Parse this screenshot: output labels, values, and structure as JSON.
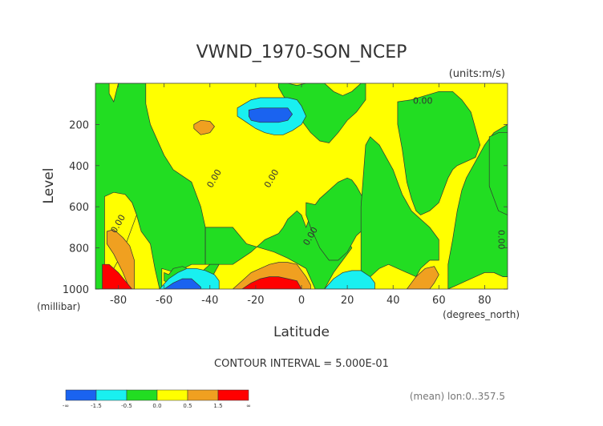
{
  "chart_data": {
    "type": "contour",
    "title": "VWND_1970-SON_NCEP",
    "units_label": "(units:m/s)",
    "xlabel": "Latitude",
    "xunits_label": "(degrees_north)",
    "ylabel": "Level",
    "yunits_label": "(millibar)",
    "xlim": [
      -90,
      90
    ],
    "ylim": [
      1000,
      0
    ],
    "x_ticks": [
      "-80",
      "-60",
      "-40",
      "-20",
      "0",
      "20",
      "40",
      "60",
      "80"
    ],
    "y_ticks": [
      "200",
      "400",
      "600",
      "800",
      "1000"
    ],
    "contour_interval_label": "CONTOUR INTERVAL = 5.000E-01",
    "mean_label": "(mean) lon:0..357.5",
    "contour_labels": [
      {
        "text": "0.00",
        "lat": 53,
        "level": 100
      },
      {
        "text": "0.00",
        "lat": -37,
        "level": 470
      },
      {
        "text": "0.00",
        "lat": -12,
        "level": 470
      },
      {
        "text": "0.00",
        "lat": 5,
        "level": 750
      },
      {
        "text": "0.00",
        "lat": -79,
        "level": 690
      },
      {
        "text": "0.00",
        "lat": 86,
        "level": 760
      }
    ],
    "legend": {
      "colors": [
        "#1a63f0",
        "#19f0f0",
        "#22dd22",
        "#ffff00",
        "#f0a020",
        "#ff0000"
      ],
      "labels": [
        "-∞",
        "-1.5",
        "-0.5",
        "0.0",
        "0.5",
        "1.5",
        "∞"
      ]
    },
    "regions": [
      {
        "color": "#22dd22",
        "lat": [
          -90,
          -85,
          -82,
          -82,
          -76,
          -74,
          -72,
          -70,
          -66,
          -64,
          -62,
          -61,
          -61,
          -55,
          -48,
          -42,
          -42,
          -44,
          -48,
          -56,
          -60,
          -64,
          -66,
          -68,
          -68,
          -72,
          -78,
          -82,
          -86,
          -90
        ],
        "level": [
          1000,
          1000,
          850,
          700,
          600,
          580,
          640,
          720,
          780,
          900,
          1000,
          1000,
          900,
          920,
          880,
          880,
          700,
          600,
          480,
          420,
          350,
          250,
          200,
          100,
          0,
          0,
          0,
          0,
          0,
          0
        ]
      },
      {
        "color": "#ffff00",
        "lat": [
          -90,
          -86,
          -84,
          -84,
          -82,
          -80
        ],
        "level": [
          0,
          0,
          0,
          50,
          90,
          0
        ]
      },
      {
        "color": "#ffff00",
        "lat": [
          -86,
          -82,
          -77,
          -74,
          -72,
          -74,
          -76,
          -78,
          -82,
          -86,
          -86
        ],
        "level": [
          550,
          530,
          540,
          580,
          640,
          700,
          760,
          820,
          900,
          900,
          550
        ]
      },
      {
        "color": "#f0a020",
        "lat": [
          -85,
          -82,
          -78,
          -75,
          -73,
          -73,
          -75,
          -78,
          -82,
          -85
        ],
        "level": [
          720,
          710,
          750,
          790,
          860,
          1000,
          1000,
          920,
          830,
          780
        ]
      },
      {
        "color": "#ff0000",
        "lat": [
          -87,
          -84,
          -80,
          -77,
          -74,
          -74,
          -87
        ],
        "level": [
          880,
          880,
          920,
          960,
          1000,
          1000,
          1000
        ]
      },
      {
        "color": "#22dd22",
        "lat": [
          -42,
          -30,
          -22,
          -16,
          -10,
          -8,
          -6,
          -4,
          -2,
          0,
          2,
          4,
          6,
          8,
          10,
          12,
          14,
          16,
          18,
          20,
          22,
          18,
          14,
          12,
          10,
          6,
          2,
          -6,
          -12,
          -18,
          -24,
          -30,
          -36,
          -42
        ],
        "level": [
          880,
          880,
          820,
          760,
          730,
          700,
          660,
          640,
          620,
          640,
          700,
          640,
          600,
          560,
          560,
          600,
          660,
          700,
          720,
          760,
          800,
          860,
          920,
          960,
          1000,
          1000,
          900,
          850,
          820,
          800,
          780,
          700,
          700,
          700
        ]
      },
      {
        "color": "#22dd22",
        "lat": [
          -60,
          -58,
          -56,
          -52,
          -50,
          -48,
          -46,
          -44,
          -42,
          -40,
          -36,
          -40,
          -44,
          -48,
          -52,
          -56,
          -60
        ],
        "level": [
          920,
          930,
          900,
          890,
          900,
          910,
          910,
          920,
          900,
          880,
          880,
          960,
          980,
          1000,
          1000,
          980,
          960
        ]
      },
      {
        "color": "#22dd22",
        "lat": [
          -10,
          -6,
          -2,
          2,
          6,
          10,
          14,
          18,
          22,
          26,
          28,
          28,
          24,
          20,
          16,
          12,
          8,
          4,
          0,
          -4,
          -8,
          -10
        ],
        "level": [
          0,
          0,
          10,
          0,
          0,
          0,
          40,
          60,
          40,
          0,
          0,
          80,
          140,
          180,
          240,
          290,
          280,
          240,
          180,
          120,
          60,
          20
        ]
      },
      {
        "color": "#22dd22",
        "lat": [
          2,
          6,
          8,
          10,
          12,
          14,
          16,
          18,
          20,
          22,
          24,
          26,
          28,
          30,
          28,
          24,
          22,
          20,
          16,
          12,
          8,
          4,
          2
        ],
        "level": [
          580,
          590,
          560,
          540,
          520,
          500,
          480,
          470,
          460,
          470,
          500,
          540,
          580,
          640,
          700,
          740,
          780,
          820,
          860,
          860,
          800,
          700,
          640
        ]
      },
      {
        "color": "#22dd22",
        "lat": [
          26,
          30,
          34,
          38,
          42,
          46,
          50,
          52,
          56,
          60,
          60,
          56,
          52,
          48,
          46,
          44,
          42,
          40,
          38,
          36,
          34,
          32,
          30,
          28,
          26
        ],
        "level": [
          980,
          940,
          900,
          880,
          900,
          920,
          940,
          900,
          860,
          860,
          760,
          700,
          660,
          620,
          580,
          540,
          480,
          420,
          380,
          340,
          300,
          280,
          260,
          300,
          600
        ]
      },
      {
        "color": "#22dd22",
        "lat": [
          42,
          48,
          54,
          60,
          66,
          70,
          74,
          76,
          78,
          76,
          72,
          68,
          66,
          64,
          62,
          60,
          56,
          52,
          50,
          48,
          46,
          44,
          42
        ],
        "level": [
          90,
          80,
          60,
          40,
          40,
          80,
          140,
          220,
          300,
          360,
          380,
          400,
          420,
          460,
          520,
          580,
          620,
          640,
          620,
          560,
          480,
          320,
          200
        ]
      },
      {
        "color": "#22dd22",
        "lat": [
          64,
          68,
          72,
          76,
          80,
          84,
          88,
          90,
          90,
          84,
          80,
          76,
          72,
          70,
          68,
          66,
          64
        ],
        "level": [
          1000,
          980,
          960,
          940,
          920,
          920,
          940,
          940,
          200,
          240,
          300,
          380,
          460,
          520,
          620,
          760,
          880
        ]
      },
      {
        "color": "#22dd22",
        "lat": [
          82,
          86,
          90,
          90,
          86,
          82
        ],
        "level": [
          260,
          240,
          240,
          640,
          620,
          500
        ]
      },
      {
        "color": "#19f0f0",
        "lat": [
          -28,
          -22,
          -18,
          -14,
          -10,
          -6,
          -2,
          0,
          2,
          0,
          -4,
          -8,
          -12,
          -16,
          -20,
          -24,
          -28
        ],
        "level": [
          120,
          80,
          70,
          70,
          70,
          70,
          80,
          110,
          160,
          200,
          230,
          250,
          250,
          240,
          220,
          190,
          160
        ]
      },
      {
        "color": "#1a63f0",
        "lat": [
          -23,
          -18,
          -14,
          -10,
          -6,
          -4,
          -6,
          -10,
          -14,
          -18,
          -22,
          -23
        ],
        "level": [
          130,
          120,
          120,
          120,
          120,
          150,
          180,
          190,
          190,
          190,
          180,
          160
        ]
      },
      {
        "color": "#19f0f0",
        "lat": [
          -62,
          -58,
          -54,
          -50,
          -46,
          -42,
          -38,
          -36,
          -36,
          -62
        ],
        "level": [
          1000,
          950,
          920,
          900,
          900,
          910,
          930,
          960,
          1000,
          1000
        ]
      },
      {
        "color": "#1a63f0",
        "lat": [
          -60,
          -56,
          -52,
          -48,
          -46,
          -44,
          -44,
          -60
        ],
        "level": [
          1000,
          970,
          950,
          950,
          970,
          990,
          1000,
          1000
        ]
      },
      {
        "color": "#19f0f0",
        "lat": [
          10,
          14,
          18,
          22,
          26,
          30,
          32,
          32,
          10
        ],
        "level": [
          1000,
          950,
          920,
          910,
          910,
          940,
          970,
          1000,
          1000
        ]
      },
      {
        "color": "#f0a020",
        "lat": [
          -30,
          -26,
          -22,
          -18,
          -14,
          -10,
          -6,
          -2,
          0,
          2,
          4,
          4,
          -30
        ],
        "level": [
          1000,
          960,
          920,
          900,
          880,
          870,
          870,
          880,
          910,
          940,
          980,
          1000,
          1000
        ]
      },
      {
        "color": "#ff0000",
        "lat": [
          -26,
          -22,
          -18,
          -14,
          -10,
          -6,
          -2,
          0,
          -26
        ],
        "level": [
          1000,
          970,
          950,
          940,
          940,
          950,
          960,
          1000,
          1000
        ]
      },
      {
        "color": "#f0a020",
        "lat": [
          -47,
          -44,
          -40,
          -38,
          -40,
          -44,
          -47
        ],
        "level": [
          200,
          180,
          185,
          210,
          240,
          250,
          220
        ]
      },
      {
        "color": "#f0a020",
        "lat": [
          46,
          50,
          54,
          58,
          60,
          58,
          56,
          46
        ],
        "level": [
          1000,
          940,
          900,
          890,
          930,
          970,
          1000,
          1000
        ]
      }
    ]
  }
}
